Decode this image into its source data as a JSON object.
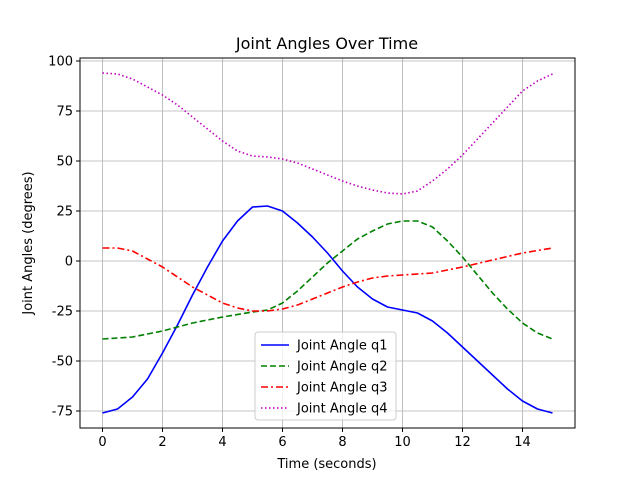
{
  "chart_data": {
    "type": "line",
    "title": "Joint Angles Over Time",
    "xlabel": "Time (seconds)",
    "ylabel": "Joint Angles (degrees)",
    "xlim": [
      -0.75,
      15.75
    ],
    "ylim": [
      -83.5,
      101.5
    ],
    "xticks": [
      0,
      2,
      4,
      6,
      8,
      10,
      12,
      14
    ],
    "yticks": [
      -75,
      -50,
      -25,
      0,
      25,
      50,
      75,
      100
    ],
    "grid": true,
    "legend_position": "lower center",
    "series": [
      {
        "name": "Joint Angle q1",
        "color": "#0000ff",
        "dash": "solid",
        "points": [
          [
            0,
            -76
          ],
          [
            0.5,
            -74
          ],
          [
            1,
            -68
          ],
          [
            1.5,
            -59
          ],
          [
            2,
            -46
          ],
          [
            2.5,
            -32
          ],
          [
            3,
            -17
          ],
          [
            3.5,
            -3
          ],
          [
            4,
            10
          ],
          [
            4.5,
            20
          ],
          [
            5,
            27
          ],
          [
            5.5,
            27.5
          ],
          [
            6,
            25
          ],
          [
            6.5,
            19
          ],
          [
            7,
            12
          ],
          [
            7.5,
            4
          ],
          [
            8,
            -5
          ],
          [
            8.5,
            -13
          ],
          [
            9,
            -19
          ],
          [
            9.5,
            -23
          ],
          [
            10,
            -24.5
          ],
          [
            10.5,
            -26
          ],
          [
            11,
            -30
          ],
          [
            11.5,
            -36
          ],
          [
            12,
            -43
          ],
          [
            12.5,
            -50
          ],
          [
            13,
            -57
          ],
          [
            13.5,
            -64
          ],
          [
            14,
            -70
          ],
          [
            14.5,
            -74
          ],
          [
            15,
            -76
          ]
        ]
      },
      {
        "name": "Joint Angle q2",
        "color": "#008000",
        "dash": "dashed",
        "points": [
          [
            0,
            -39
          ],
          [
            1,
            -38
          ],
          [
            2,
            -35
          ],
          [
            3,
            -31
          ],
          [
            4,
            -28
          ],
          [
            5,
            -25.5
          ],
          [
            5.5,
            -24.5
          ],
          [
            6,
            -21
          ],
          [
            6.5,
            -15
          ],
          [
            7,
            -8
          ],
          [
            7.5,
            -1
          ],
          [
            8,
            5
          ],
          [
            8.5,
            11
          ],
          [
            9,
            15
          ],
          [
            9.5,
            18.5
          ],
          [
            10,
            20
          ],
          [
            10.5,
            20
          ],
          [
            11,
            17
          ],
          [
            11.5,
            10
          ],
          [
            12,
            2
          ],
          [
            12.5,
            -7
          ],
          [
            13,
            -16
          ],
          [
            13.5,
            -24
          ],
          [
            14,
            -31
          ],
          [
            14.5,
            -36
          ],
          [
            15,
            -39
          ]
        ]
      },
      {
        "name": "Joint Angle q3",
        "color": "#ff0000",
        "dash": "dashdot",
        "points": [
          [
            0,
            6.5
          ],
          [
            0.5,
            6.5
          ],
          [
            1,
            5
          ],
          [
            1.5,
            1
          ],
          [
            2,
            -3
          ],
          [
            2.5,
            -8
          ],
          [
            3,
            -13
          ],
          [
            3.5,
            -17
          ],
          [
            4,
            -21
          ],
          [
            4.5,
            -23.5
          ],
          [
            5,
            -25
          ],
          [
            5.5,
            -25
          ],
          [
            6,
            -24
          ],
          [
            6.5,
            -22
          ],
          [
            7,
            -19
          ],
          [
            7.5,
            -16
          ],
          [
            8,
            -13
          ],
          [
            8.5,
            -10.5
          ],
          [
            9,
            -8.5
          ],
          [
            9.5,
            -7.5
          ],
          [
            10,
            -7
          ],
          [
            11,
            -6
          ],
          [
            12,
            -3
          ],
          [
            13,
            0.5
          ],
          [
            14,
            4
          ],
          [
            15,
            6.5
          ]
        ]
      },
      {
        "name": "Joint Angle q4",
        "color": "#bf00bf",
        "dash": "dotted",
        "points": [
          [
            0,
            94
          ],
          [
            0.5,
            93.5
          ],
          [
            1,
            91
          ],
          [
            1.5,
            87
          ],
          [
            2,
            83
          ],
          [
            2.5,
            78
          ],
          [
            3,
            72
          ],
          [
            3.5,
            66
          ],
          [
            4,
            60
          ],
          [
            4.5,
            55
          ],
          [
            5,
            52.5
          ],
          [
            5.5,
            52
          ],
          [
            6,
            51
          ],
          [
            6.5,
            49
          ],
          [
            7,
            46
          ],
          [
            7.5,
            43
          ],
          [
            8,
            40
          ],
          [
            8.5,
            37.5
          ],
          [
            9,
            35.5
          ],
          [
            9.5,
            34
          ],
          [
            10,
            33.5
          ],
          [
            10.5,
            35
          ],
          [
            11,
            40
          ],
          [
            11.5,
            46
          ],
          [
            12,
            53
          ],
          [
            12.5,
            61
          ],
          [
            13,
            69
          ],
          [
            13.5,
            77
          ],
          [
            14,
            85
          ],
          [
            14.5,
            90
          ],
          [
            15,
            93.5
          ]
        ]
      }
    ]
  }
}
